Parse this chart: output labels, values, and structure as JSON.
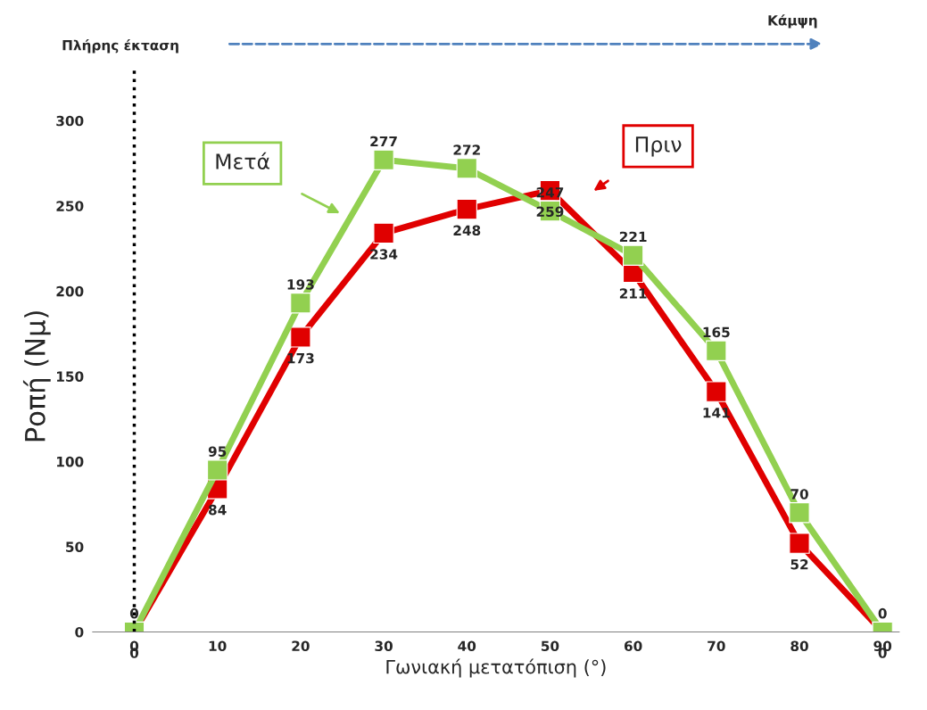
{
  "chart_data": {
    "type": "line",
    "xlabel": "Γωνιακή μετατόπιση (°)",
    "ylabel": "Ροπή (Nμ)",
    "x": [
      0,
      10,
      20,
      30,
      40,
      50,
      60,
      70,
      80,
      90
    ],
    "series": [
      {
        "name": "Πριν",
        "color": "#e00000",
        "values": [
          0,
          84,
          173,
          234,
          248,
          259,
          211,
          141,
          52,
          0
        ]
      },
      {
        "name": "Μετά",
        "color": "#92d050",
        "values": [
          0,
          95,
          193,
          277,
          272,
          247,
          221,
          165,
          70,
          0
        ]
      }
    ],
    "xlim": [
      -5,
      92
    ],
    "xticks": [
      0,
      10,
      20,
      30,
      40,
      50,
      60,
      70,
      80,
      90
    ],
    "ylim": [
      0,
      300
    ],
    "yticks": [
      0,
      50,
      100,
      150,
      200,
      250,
      300
    ],
    "ref_lines": [
      {
        "axis": "x",
        "value": 0,
        "color": "#000000",
        "line_style": "dotted"
      }
    ],
    "annotations": [
      "Πλήρης έκταση",
      "Κάμψη"
    ],
    "data_labels": true,
    "marker": "square",
    "line_style": "solid",
    "grid": false,
    "legend": false
  }
}
